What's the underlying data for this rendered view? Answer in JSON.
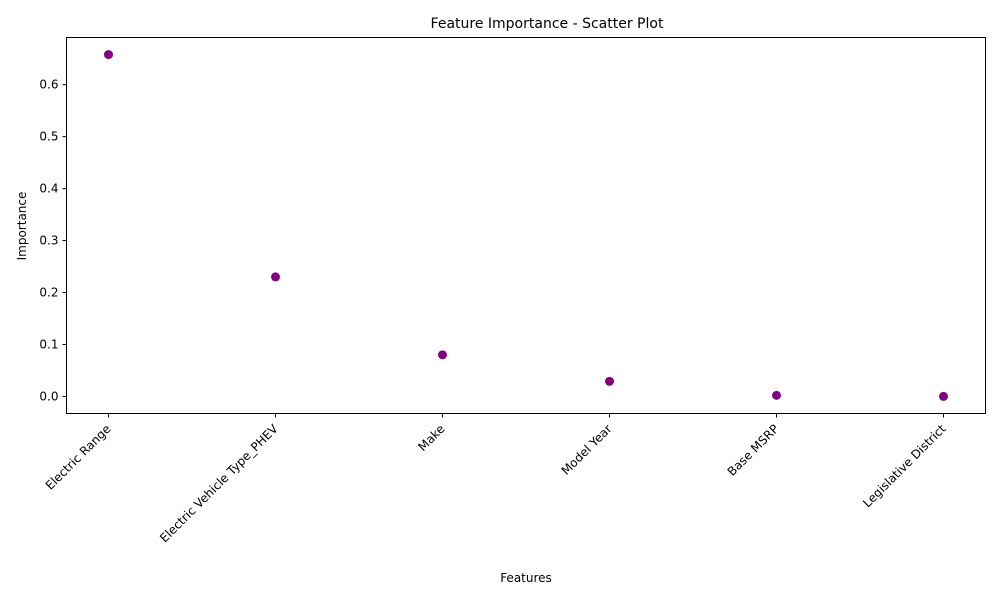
{
  "chart_data": {
    "type": "scatter",
    "title": "Feature Importance - Scatter Plot",
    "xlabel": "Features",
    "ylabel": "Importance",
    "categories": [
      "Electric Range",
      "Electric Vehicle Type_PHEV",
      "Make",
      "Model Year",
      "Base MSRP",
      "Legislative District"
    ],
    "values": [
      0.658,
      0.23,
      0.08,
      0.029,
      0.002,
      0.0
    ],
    "ylim": [
      -0.0329,
      0.6909
    ],
    "yticks": [
      0.0,
      0.1,
      0.2,
      0.3,
      0.4,
      0.5,
      0.6
    ],
    "ytick_labels": [
      "0.0",
      "0.1",
      "0.2",
      "0.3",
      "0.4",
      "0.5",
      "0.6"
    ],
    "marker_color": "#800080",
    "grid": false,
    "legend": "none"
  }
}
